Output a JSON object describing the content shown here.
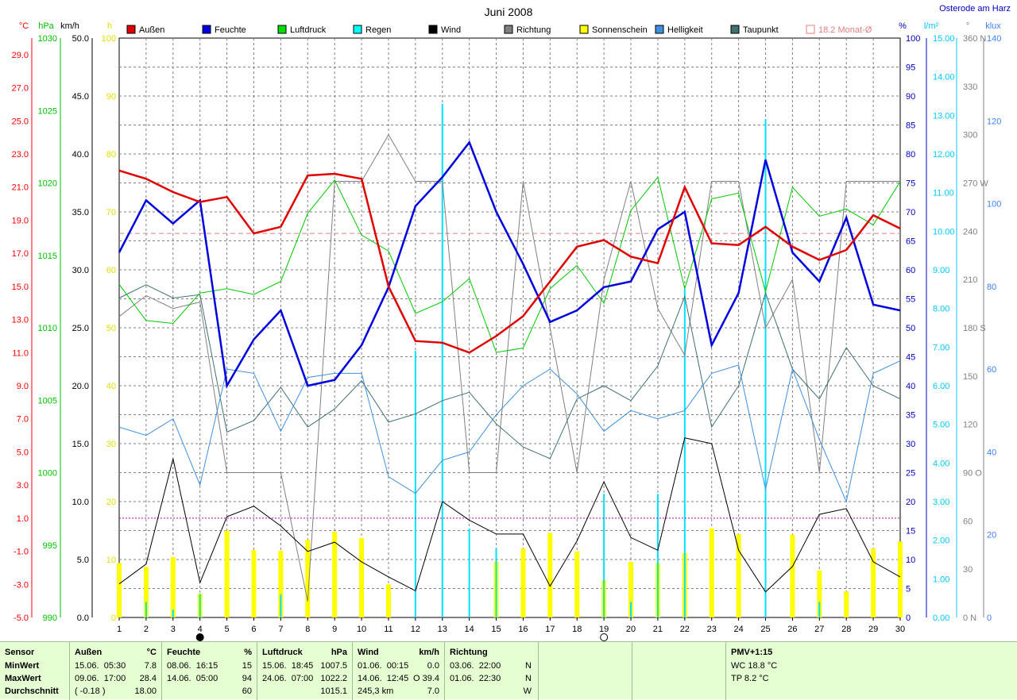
{
  "chart_data": {
    "type": "line",
    "title": "Juni 2008",
    "location": "Osterode am Harz",
    "x": [
      1,
      2,
      3,
      4,
      5,
      6,
      7,
      8,
      9,
      10,
      11,
      12,
      13,
      14,
      15,
      16,
      17,
      18,
      19,
      20,
      21,
      22,
      23,
      24,
      25,
      26,
      27,
      28,
      29,
      30
    ],
    "axes": {
      "left_temp": {
        "unit": "°C",
        "ticks": [
          "29.0",
          "27.0",
          "25.0",
          "23.0",
          "21.0",
          "19.0",
          "17.0",
          "15.0",
          "13.0",
          "11.0",
          "9.0",
          "7.0",
          "5.0",
          "3.0",
          "1.0",
          "-1.0",
          "-3.0",
          "-5.0"
        ],
        "color": "#ff0000"
      },
      "left_pressure": {
        "unit": "hPa",
        "ticks": [
          "1030",
          "1025",
          "1020",
          "1015",
          "1010",
          "1005",
          "1000",
          "995",
          "990"
        ],
        "color": "#00c000"
      },
      "left_wind": {
        "unit": "km/h",
        "ticks": [
          "50.0",
          "45.0",
          "40.0",
          "35.0",
          "30.0",
          "25.0",
          "20.0",
          "15.0",
          "10.0",
          "5.0",
          "0.0"
        ],
        "color": "#000000"
      },
      "left_sun": {
        "unit": "h",
        "ticks": [
          "100",
          "90",
          "80",
          "70",
          "60",
          "50",
          "40",
          "30",
          "20",
          "10",
          "0"
        ],
        "color": "#e0e000"
      },
      "right_humidity": {
        "unit": "%",
        "ticks": [
          "100",
          "95",
          "90",
          "85",
          "80",
          "75",
          "70",
          "65",
          "60",
          "55",
          "50",
          "45",
          "40",
          "35",
          "30",
          "25",
          "20",
          "15",
          "10",
          "5",
          "0"
        ],
        "color": "#0000c0"
      },
      "right_rain": {
        "unit": "l/m²",
        "ticks": [
          "15.00",
          "14.00",
          "13.00",
          "12.00",
          "11.00",
          "10.00",
          "9.00",
          "8.00",
          "7.00",
          "6.00",
          "5.00",
          "4.00",
          "3.00",
          "2.00",
          "1.00",
          "0.00"
        ],
        "color": "#00c8ff"
      },
      "right_direction": {
        "unit": "°",
        "ticks": [
          "360 N",
          "330",
          "300",
          "270 W",
          "240",
          "210",
          "180 S",
          "150",
          "120",
          "90 O",
          "60",
          "30",
          "0 N"
        ],
        "color": "#808080"
      },
      "right_lux": {
        "unit": "klux",
        "ticks": [
          "140",
          "120",
          "100",
          "80",
          "60",
          "40",
          "20",
          "0"
        ],
        "color": "#4080ff"
      }
    },
    "legend": [
      "Außen",
      "Feuchte",
      "Luftdruck",
      "Regen",
      "Wind",
      "Richtung",
      "Sonnenschein",
      "Helligkeit",
      "Taupunkt",
      "18.2 Monat-Ø"
    ],
    "series": [
      {
        "name": "Außen",
        "unit": "°C",
        "color": "#e00000",
        "values": [
          22.0,
          21.5,
          20.7,
          20.1,
          20.4,
          18.2,
          18.6,
          21.7,
          21.8,
          21.5,
          15.0,
          11.7,
          11.6,
          11.0,
          12.0,
          13.2,
          15.3,
          17.4,
          17.8,
          16.8,
          16.4,
          21.0,
          17.6,
          17.5,
          18.6,
          17.4,
          16.6,
          17.2,
          19.3,
          18.5
        ]
      },
      {
        "name": "Feuchte",
        "unit": "%",
        "color": "#0000e0",
        "values": [
          63,
          72,
          68,
          72,
          40,
          48,
          53,
          40,
          41,
          47,
          57,
          71,
          76,
          82,
          70,
          61,
          51,
          53,
          57,
          58,
          67,
          70,
          47,
          56,
          79,
          63,
          58,
          69,
          54,
          53
        ]
      },
      {
        "name": "Luftdruck",
        "unit": "hPa",
        "color": "#00c800",
        "values": [
          1013,
          1010.5,
          1010.3,
          1012.4,
          1012.7,
          1012.3,
          1013.2,
          1017.9,
          1020.2,
          1016.4,
          1015.3,
          1011,
          1011.8,
          1013.4,
          1008.3,
          1008.6,
          1012.7,
          1014.3,
          1011.7,
          1018.1,
          1020.4,
          1012.7,
          1018.9,
          1019.3,
          1012.5,
          1019.7,
          1017.7,
          1018.2,
          1017.1,
          1020.1
        ]
      },
      {
        "name": "Wind",
        "unit": "km/h",
        "color": "#000000",
        "values": [
          2.9,
          4.6,
          13.7,
          3.0,
          8.7,
          9.6,
          7.9,
          5.7,
          6.5,
          4.8,
          3.5,
          2.3,
          10.0,
          8.4,
          7.2,
          7.2,
          2.7,
          6.6,
          11.7,
          6.9,
          5.8,
          15.5,
          15.0,
          5.8,
          2.2,
          4.4,
          8.9,
          9.4,
          4.8,
          3.5
        ]
      },
      {
        "name": "Richtung",
        "unit": "°",
        "color": "#808080",
        "values": [
          187,
          200,
          192,
          196,
          90,
          90,
          90,
          10,
          271,
          271,
          300,
          271,
          271,
          90,
          90,
          271,
          180,
          90,
          210,
          271,
          192,
          163,
          271,
          271,
          180,
          210,
          90,
          271,
          271,
          271
        ]
      },
      {
        "name": "Taupunkt",
        "unit": "°C",
        "color": "#407070",
        "values": [
          14.3,
          15.1,
          14.3,
          14.5,
          6.2,
          6.9,
          8.9,
          6.5,
          7.6,
          9.3,
          6.8,
          7.3,
          8.1,
          8.6,
          6.7,
          5.3,
          4.6,
          8.2,
          9.0,
          8.1,
          10.2,
          14.4,
          6.5,
          9.0,
          14.6,
          10.0,
          8.2,
          11.3,
          9.0,
          8.2
        ]
      },
      {
        "name": "Helligkeit",
        "unit": "klux",
        "color": "#4090e0",
        "values": [
          46,
          44,
          48,
          32,
          60,
          59,
          45,
          58,
          59,
          59,
          34,
          30,
          38,
          40,
          49,
          56,
          60,
          54,
          45,
          50,
          48,
          50,
          59,
          61,
          31,
          60,
          43,
          28,
          59,
          62
        ]
      }
    ],
    "bars": [
      {
        "name": "Regen",
        "unit": "l/m²",
        "color": "#00e0ff",
        "values": [
          0,
          0.4,
          0.2,
          0.6,
          0,
          0,
          0.6,
          0,
          0,
          0,
          0,
          6.9,
          13.3,
          2.3,
          1.8,
          0,
          0,
          0,
          3.2,
          0.4,
          3.2,
          8.5,
          0,
          0,
          12.9,
          0,
          0.4,
          0,
          0,
          0
        ]
      },
      {
        "name": "Sonnenschein",
        "unit": "h",
        "color": "#ffff00",
        "values": [
          9.4,
          8.7,
          10.4,
          4.1,
          15.0,
          11.6,
          11.5,
          13.4,
          14.8,
          13.7,
          5.7,
          0,
          0,
          0,
          9.6,
          11.9,
          14.6,
          11.4,
          6.4,
          9.6,
          9.4,
          11.1,
          15.4,
          14.4,
          0,
          14.3,
          8.1,
          4.5,
          11.9,
          13.1
        ]
      }
    ],
    "reference_line": {
      "name": "18.2 Monat-Ø",
      "value": 18.2,
      "unit": "°C",
      "color": "#e08080"
    },
    "pmv_line": {
      "value": 1.0,
      "unit": "°C",
      "color": "#c000c0"
    },
    "moon_days": {
      "new_moon": 4,
      "full_moon": 19
    }
  },
  "stats": {
    "header": [
      "Sensor",
      "Außen",
      "°C",
      "Feuchte",
      "%",
      "Luftdruck",
      "hPa",
      "Wind",
      "km/h",
      "Richtung"
    ],
    "rows": [
      {
        "label": "MinWert",
        "aussen_time": "15.06.  05:30",
        "aussen_val": "7.8",
        "feuchte_time": "08.06.  16:15",
        "feuchte_val": "15",
        "druck_time": "15.06.  18:45",
        "druck_val": "1007.5",
        "wind_time": "01.06.  00:15",
        "wind_val": "0.0",
        "richtung_time": "03.06.  22:00",
        "richtung_val": "N"
      },
      {
        "label": "MaxWert",
        "aussen_time": "09.06.  17:00",
        "aussen_val": "28.4",
        "feuchte_time": "14.06.  05:00",
        "feuchte_val": "94",
        "druck_time": "24.06.  07:00",
        "druck_val": "1022.2",
        "wind_time": "14.06.  12:45",
        "wind_val": "O 39.4",
        "richtung_time": "01.06.  22:30",
        "richtung_val": "N"
      },
      {
        "label": "Durchschnitt",
        "aussen_time": "( -0.18 )",
        "aussen_val": "18.00",
        "feuchte_time": "",
        "feuchte_val": "60",
        "druck_time": "",
        "druck_val": "1015.1",
        "wind_time": "245,3 km",
        "wind_val": "7.0",
        "richtung_time": "",
        "richtung_val": "W"
      }
    ],
    "pmv": {
      "title": "PMV+1:15",
      "wc": "WC 18.8 °C",
      "tp": "TP 8.2 °C"
    }
  }
}
